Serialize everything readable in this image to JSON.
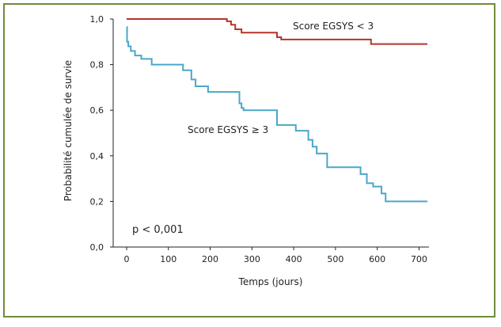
{
  "chart_data": {
    "type": "line",
    "step": true,
    "xlabel": "Temps (jours)",
    "ylabel": "Probabilité cumulée de survie",
    "xlim": [
      0,
      720
    ],
    "ylim": [
      0.0,
      1.0
    ],
    "xticks": [
      0,
      100,
      200,
      300,
      400,
      500,
      600,
      700
    ],
    "yticks": [
      0.0,
      0.2,
      0.4,
      0.6,
      0.8,
      1.0
    ],
    "xtick_labels": [
      "0",
      "100",
      "200",
      "300",
      "400",
      "500",
      "600",
      "700"
    ],
    "ytick_labels": [
      "0,0",
      "0,2",
      "0,4",
      "0,6",
      "0,8",
      "1,0"
    ],
    "grid": false,
    "annotation": "p < 0,001",
    "series": [
      {
        "name": "Score EGSYS < 3",
        "color": "#b5342c",
        "x": [
          0,
          240,
          250,
          260,
          275,
          360,
          370,
          585,
          720
        ],
        "y": [
          1.0,
          0.99,
          0.975,
          0.955,
          0.94,
          0.92,
          0.91,
          0.89,
          0.89
        ]
      },
      {
        "name": "Score EGSYS ≥ 3",
        "color": "#4aa7c9",
        "x": [
          0,
          1,
          4,
          10,
          20,
          35,
          60,
          135,
          155,
          165,
          195,
          270,
          275,
          280,
          360,
          405,
          435,
          445,
          455,
          480,
          560,
          575,
          590,
          610,
          620,
          720
        ],
        "y": [
          0.965,
          0.9,
          0.88,
          0.86,
          0.84,
          0.825,
          0.8,
          0.775,
          0.735,
          0.705,
          0.68,
          0.63,
          0.61,
          0.6,
          0.535,
          0.51,
          0.47,
          0.44,
          0.41,
          0.35,
          0.32,
          0.28,
          0.265,
          0.235,
          0.2,
          0.2
        ]
      }
    ]
  }
}
